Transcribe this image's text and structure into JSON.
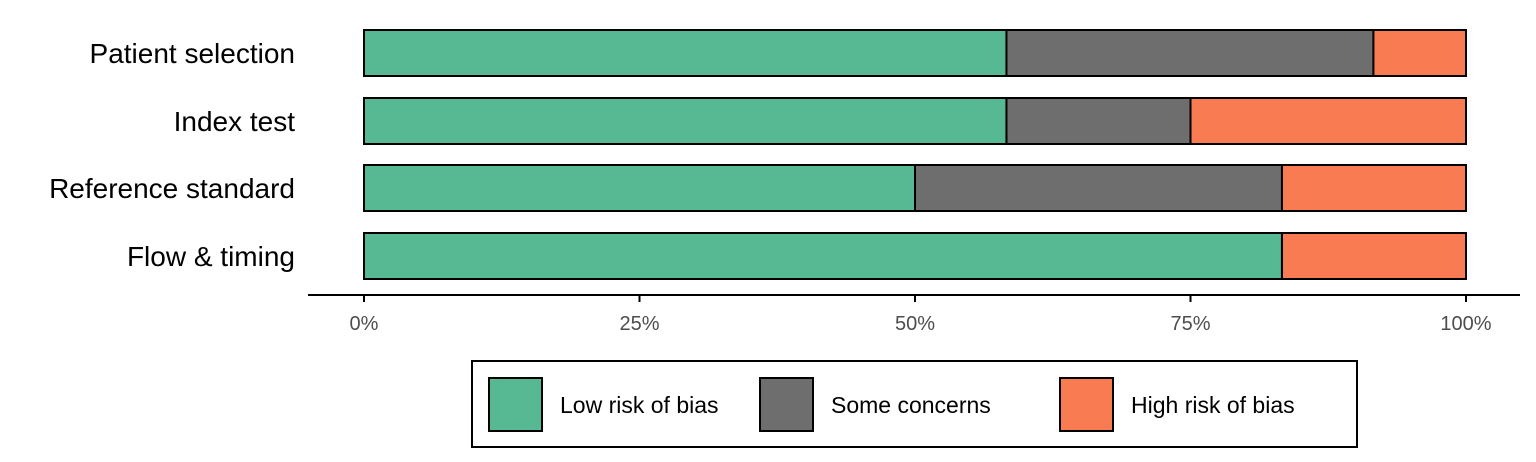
{
  "chart_data": {
    "type": "bar",
    "orientation": "horizontal",
    "stacked": true,
    "categories": [
      "Patient selection",
      "Index test",
      "Reference standard",
      "Flow & timing"
    ],
    "series": [
      {
        "name": "Low risk of bias",
        "color": "#57b894",
        "values": [
          58.3,
          58.3,
          50.0,
          83.3
        ]
      },
      {
        "name": "Some concerns",
        "color": "#6e6e6e",
        "values": [
          33.3,
          16.7,
          33.3,
          0.0
        ]
      },
      {
        "name": "High risk of bias",
        "color": "#f97b51",
        "values": [
          8.4,
          25.0,
          16.7,
          16.7
        ]
      }
    ],
    "xlim": [
      0,
      100
    ],
    "xticks": [
      0,
      25,
      50,
      75,
      100
    ],
    "xtick_labels": [
      "0%",
      "25%",
      "50%",
      "75%",
      "100%"
    ],
    "grid": false,
    "legend_position": "bottom"
  }
}
